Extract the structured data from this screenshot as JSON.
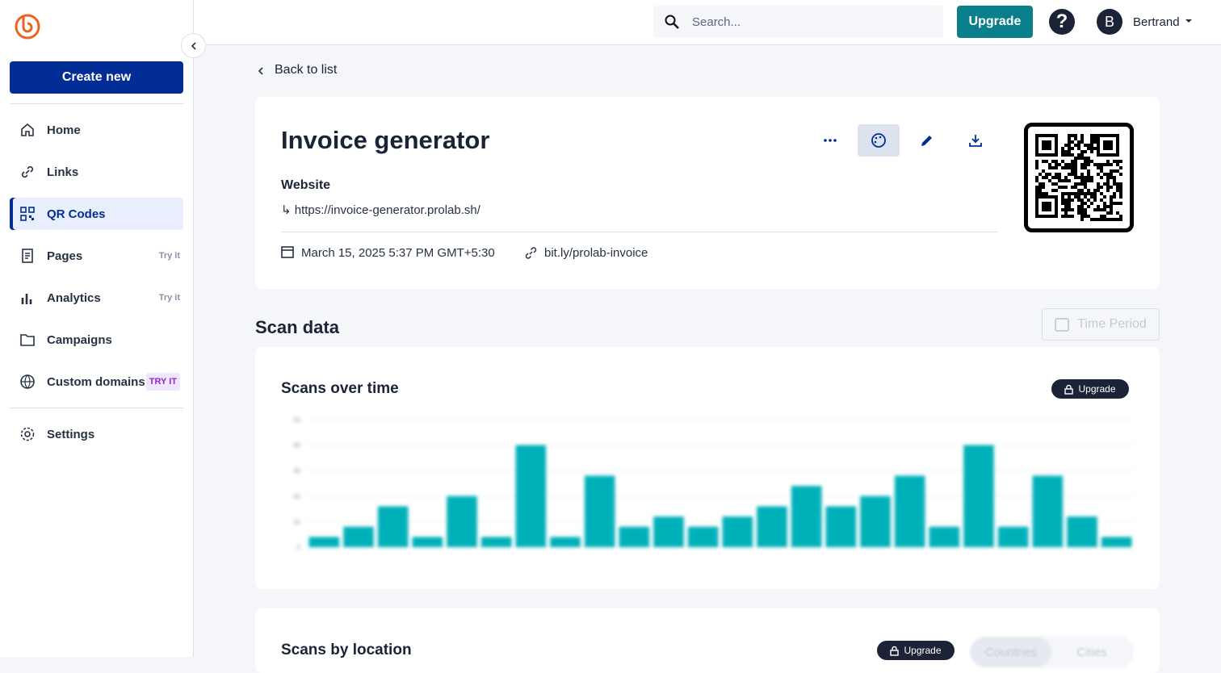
{
  "header": {
    "search_placeholder": "Search...",
    "upgrade": "Upgrade",
    "help": "?",
    "user_initial": "B",
    "user_name": "Bertrand"
  },
  "sidebar": {
    "create": "Create new",
    "nav": [
      {
        "label": "Home"
      },
      {
        "label": "Links"
      },
      {
        "label": "QR Codes"
      },
      {
        "label": "Pages",
        "badge": "Try it"
      },
      {
        "label": "Analytics",
        "badge": "Try it"
      },
      {
        "label": "Campaigns"
      },
      {
        "label": "Custom domains",
        "badge": "TRY IT"
      }
    ],
    "settings": "Settings"
  },
  "detail": {
    "back": "Back to list",
    "title": "Invoice generator",
    "type": "Website",
    "url": "https://invoice-generator.prolab.sh/",
    "date": "March 15, 2025 5:37 PM GMT+5:30",
    "short_link": "bit.ly/prolab-invoice"
  },
  "scan": {
    "title": "Scan data",
    "time_period": "Time Period",
    "over_time": {
      "title": "Scans over time",
      "upgrade": "Upgrade",
      "chart": {
        "type": "bar",
        "color": "#00b0b9",
        "ylim": [
          0,
          50
        ],
        "yticks": [
          0,
          10,
          20,
          30,
          40,
          50
        ],
        "grid": true,
        "values": [
          4,
          8,
          16,
          4,
          20,
          4,
          40,
          4,
          28,
          8,
          12,
          8,
          12,
          16,
          24,
          16,
          20,
          28,
          8,
          40,
          8,
          28,
          12,
          4
        ]
      }
    },
    "location": {
      "title": "Scans by location",
      "upgrade": "Upgrade",
      "tabs": [
        "Countries",
        "Cities"
      ]
    }
  }
}
